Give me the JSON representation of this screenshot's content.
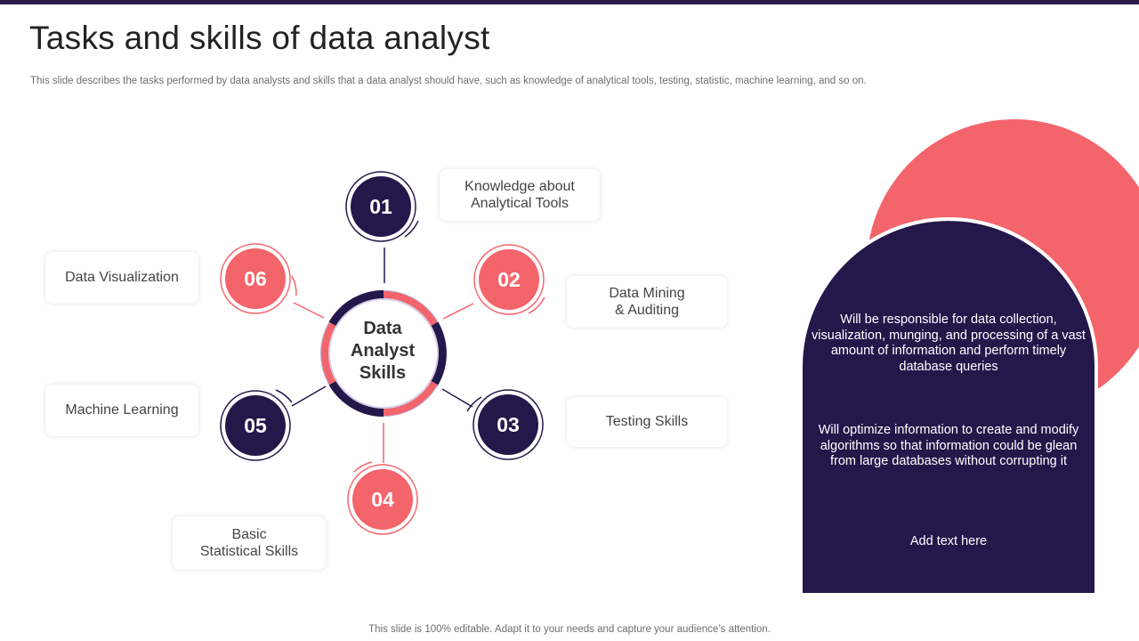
{
  "header": {
    "title": "Tasks and skills of data analyst",
    "subtitle": "This slide describes the tasks performed by data analysts and skills that a data analyst should have, such as knowledge of analytical tools, testing, statistic, machine learning, and so on."
  },
  "diagram": {
    "center_label": "Data\nAnalyst\nSkills",
    "items": [
      {
        "number": "01",
        "label": "Knowledge about\nAnalytical Tools"
      },
      {
        "number": "02",
        "label": "Data Mining\n& Auditing"
      },
      {
        "number": "03",
        "label": "Testing Skills"
      },
      {
        "number": "04",
        "label": "Basic\nStatistical Skills"
      },
      {
        "number": "05",
        "label": "Machine Learning"
      },
      {
        "number": "06",
        "label": "Data Visualization"
      }
    ]
  },
  "panel": {
    "text1": "Will be responsible for data collection, visualization, munging, and processing of a vast amount of information and perform timely database queries",
    "text2": "Will optimize information to create and modify algorithms so that information could be glean from large databases without corrupting it",
    "text3": "Add text here"
  },
  "footer": "This slide is 100% editable. Adapt it to your needs and capture your audience’s attention.",
  "colors": {
    "dark": "#24174a",
    "accent": "#f4646b",
    "light_purple": "#b6aed6",
    "light_pink": "#f7c5c8"
  }
}
